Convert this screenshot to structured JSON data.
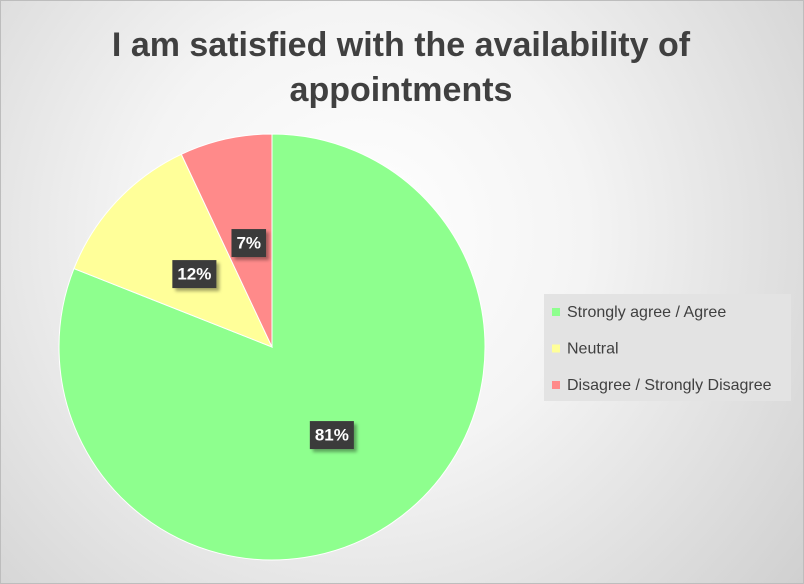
{
  "chart_data": {
    "type": "pie",
    "title": "I am satisfied with the availability of appointments",
    "categories": [
      "Strongly agree / Agree",
      "Neutral",
      "Disagree / Strongly Disagree"
    ],
    "values": [
      81,
      12,
      7
    ],
    "value_labels": [
      "81%",
      "12%",
      "7%"
    ],
    "colors": [
      "#8eff8e",
      "#ffff99",
      "#ff8a8a"
    ],
    "legend": "right"
  }
}
